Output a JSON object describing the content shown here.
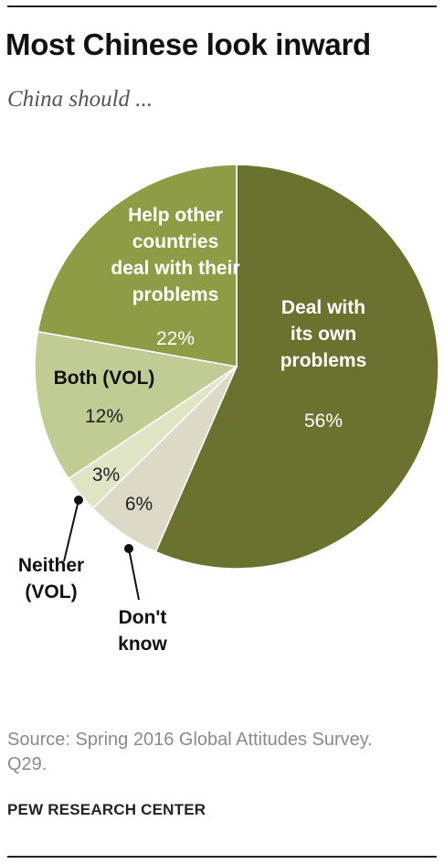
{
  "header": {
    "title": "Most Chinese look inward",
    "subtitle": "China should ..."
  },
  "footer": {
    "source": "Source: Spring 2016 Global Attitudes Survey. Q29.",
    "credit": "PEW RESEARCH CENTER"
  },
  "chart_data": {
    "type": "pie",
    "title": "Most Chinese look inward",
    "subtitle": "China should ...",
    "start": "12 o'clock",
    "direction": "clockwise",
    "slices": [
      {
        "label": [
          "Deal with",
          "its own",
          "problems"
        ],
        "value": 56,
        "value_label": "56%",
        "color": "#6b7230"
      },
      {
        "label": [
          "Don't",
          "know"
        ],
        "value": 6,
        "value_label": "6%",
        "color": "#ddd9c7"
      },
      {
        "label": [
          "Neither",
          "(VOL)"
        ],
        "value": 3,
        "value_label": "3%",
        "color": "#dfe4c4"
      },
      {
        "label": [
          "Both (VOL)"
        ],
        "value": 12,
        "value_label": "12%",
        "color": "#c1cc95"
      },
      {
        "label": [
          "Help other",
          "countries",
          "deal with their",
          "problems"
        ],
        "value": 22,
        "value_label": "22%",
        "color": "#8f9c46"
      }
    ]
  }
}
